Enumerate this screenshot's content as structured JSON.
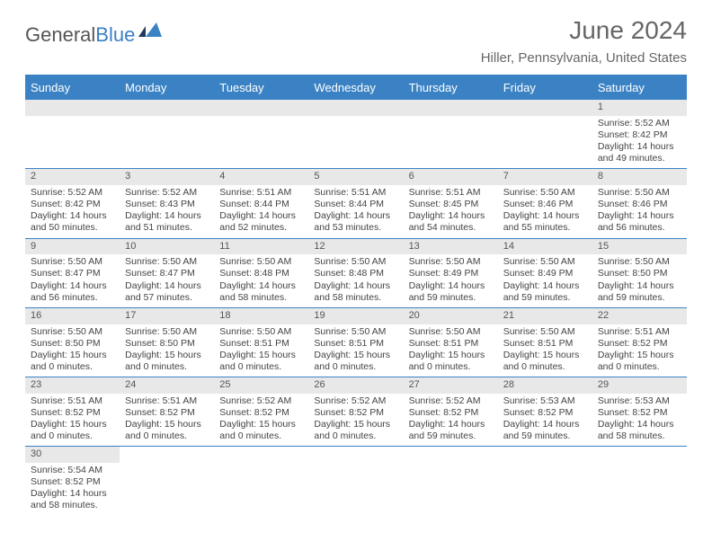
{
  "logo": {
    "part1": "General",
    "part2": "Blue"
  },
  "title": "June 2024",
  "location": "Hiller, Pennsylvania, United States",
  "colors": {
    "header_bg": "#3b82c4",
    "header_fg": "#ffffff",
    "daynum_bg": "#e8e8e8",
    "text": "#444444",
    "title": "#666666"
  },
  "dayNames": [
    "Sunday",
    "Monday",
    "Tuesday",
    "Wednesday",
    "Thursday",
    "Friday",
    "Saturday"
  ],
  "weeks": [
    [
      null,
      null,
      null,
      null,
      null,
      null,
      {
        "n": "1",
        "sr": "5:52 AM",
        "ss": "8:42 PM",
        "dl": "14 hours",
        "dm": "and 49 minutes."
      }
    ],
    [
      {
        "n": "2",
        "sr": "5:52 AM",
        "ss": "8:42 PM",
        "dl": "14 hours",
        "dm": "and 50 minutes."
      },
      {
        "n": "3",
        "sr": "5:52 AM",
        "ss": "8:43 PM",
        "dl": "14 hours",
        "dm": "and 51 minutes."
      },
      {
        "n": "4",
        "sr": "5:51 AM",
        "ss": "8:44 PM",
        "dl": "14 hours",
        "dm": "and 52 minutes."
      },
      {
        "n": "5",
        "sr": "5:51 AM",
        "ss": "8:44 PM",
        "dl": "14 hours",
        "dm": "and 53 minutes."
      },
      {
        "n": "6",
        "sr": "5:51 AM",
        "ss": "8:45 PM",
        "dl": "14 hours",
        "dm": "and 54 minutes."
      },
      {
        "n": "7",
        "sr": "5:50 AM",
        "ss": "8:46 PM",
        "dl": "14 hours",
        "dm": "and 55 minutes."
      },
      {
        "n": "8",
        "sr": "5:50 AM",
        "ss": "8:46 PM",
        "dl": "14 hours",
        "dm": "and 56 minutes."
      }
    ],
    [
      {
        "n": "9",
        "sr": "5:50 AM",
        "ss": "8:47 PM",
        "dl": "14 hours",
        "dm": "and 56 minutes."
      },
      {
        "n": "10",
        "sr": "5:50 AM",
        "ss": "8:47 PM",
        "dl": "14 hours",
        "dm": "and 57 minutes."
      },
      {
        "n": "11",
        "sr": "5:50 AM",
        "ss": "8:48 PM",
        "dl": "14 hours",
        "dm": "and 58 minutes."
      },
      {
        "n": "12",
        "sr": "5:50 AM",
        "ss": "8:48 PM",
        "dl": "14 hours",
        "dm": "and 58 minutes."
      },
      {
        "n": "13",
        "sr": "5:50 AM",
        "ss": "8:49 PM",
        "dl": "14 hours",
        "dm": "and 59 minutes."
      },
      {
        "n": "14",
        "sr": "5:50 AM",
        "ss": "8:49 PM",
        "dl": "14 hours",
        "dm": "and 59 minutes."
      },
      {
        "n": "15",
        "sr": "5:50 AM",
        "ss": "8:50 PM",
        "dl": "14 hours",
        "dm": "and 59 minutes."
      }
    ],
    [
      {
        "n": "16",
        "sr": "5:50 AM",
        "ss": "8:50 PM",
        "dl": "15 hours",
        "dm": "and 0 minutes."
      },
      {
        "n": "17",
        "sr": "5:50 AM",
        "ss": "8:50 PM",
        "dl": "15 hours",
        "dm": "and 0 minutes."
      },
      {
        "n": "18",
        "sr": "5:50 AM",
        "ss": "8:51 PM",
        "dl": "15 hours",
        "dm": "and 0 minutes."
      },
      {
        "n": "19",
        "sr": "5:50 AM",
        "ss": "8:51 PM",
        "dl": "15 hours",
        "dm": "and 0 minutes."
      },
      {
        "n": "20",
        "sr": "5:50 AM",
        "ss": "8:51 PM",
        "dl": "15 hours",
        "dm": "and 0 minutes."
      },
      {
        "n": "21",
        "sr": "5:50 AM",
        "ss": "8:51 PM",
        "dl": "15 hours",
        "dm": "and 0 minutes."
      },
      {
        "n": "22",
        "sr": "5:51 AM",
        "ss": "8:52 PM",
        "dl": "15 hours",
        "dm": "and 0 minutes."
      }
    ],
    [
      {
        "n": "23",
        "sr": "5:51 AM",
        "ss": "8:52 PM",
        "dl": "15 hours",
        "dm": "and 0 minutes."
      },
      {
        "n": "24",
        "sr": "5:51 AM",
        "ss": "8:52 PM",
        "dl": "15 hours",
        "dm": "and 0 minutes."
      },
      {
        "n": "25",
        "sr": "5:52 AM",
        "ss": "8:52 PM",
        "dl": "15 hours",
        "dm": "and 0 minutes."
      },
      {
        "n": "26",
        "sr": "5:52 AM",
        "ss": "8:52 PM",
        "dl": "15 hours",
        "dm": "and 0 minutes."
      },
      {
        "n": "27",
        "sr": "5:52 AM",
        "ss": "8:52 PM",
        "dl": "14 hours",
        "dm": "and 59 minutes."
      },
      {
        "n": "28",
        "sr": "5:53 AM",
        "ss": "8:52 PM",
        "dl": "14 hours",
        "dm": "and 59 minutes."
      },
      {
        "n": "29",
        "sr": "5:53 AM",
        "ss": "8:52 PM",
        "dl": "14 hours",
        "dm": "and 58 minutes."
      }
    ],
    [
      {
        "n": "30",
        "sr": "5:54 AM",
        "ss": "8:52 PM",
        "dl": "14 hours",
        "dm": "and 58 minutes."
      },
      null,
      null,
      null,
      null,
      null,
      null
    ]
  ],
  "labels": {
    "sunrise": "Sunrise: ",
    "sunset": "Sunset: ",
    "daylight": "Daylight: "
  }
}
